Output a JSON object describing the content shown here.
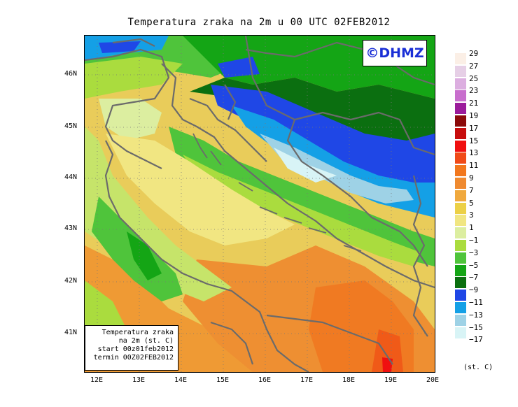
{
  "title": "Temperatura zraka na 2m u 00 UTC 02FEB2012",
  "logo": "©DHMZ",
  "info_box": {
    "line1": "Temperatura zraka",
    "line2": "na 2m (st. C)",
    "line3": "start 00z01feb2012",
    "line4": "termin 00Z02FEB2012"
  },
  "lat_labels": [
    "46N",
    "45N",
    "44N",
    "43N",
    "42N",
    "41N"
  ],
  "lon_labels": [
    "12E",
    "13E",
    "14E",
    "15E",
    "16E",
    "17E",
    "18E",
    "19E",
    "20E"
  ],
  "legend": {
    "unit": "(st. C)",
    "items": [
      {
        "label": "29",
        "color": "#fbefe6"
      },
      {
        "label": "27",
        "color": "#e6cfe6"
      },
      {
        "label": "25",
        "color": "#dcaee0"
      },
      {
        "label": "23",
        "color": "#c86ecd"
      },
      {
        "label": "21",
        "color": "#9b1b9b"
      },
      {
        "label": "19",
        "color": "#8b0a0a"
      },
      {
        "label": "17",
        "color": "#c70d0d"
      },
      {
        "label": "15",
        "color": "#f01010"
      },
      {
        "label": "13",
        "color": "#f04a18"
      },
      {
        "label": "11",
        "color": "#f2771d"
      },
      {
        "label": "9",
        "color": "#ef8a30"
      },
      {
        "label": "7",
        "color": "#f0a93e"
      },
      {
        "label": "5",
        "color": "#ecd046"
      },
      {
        "label": "3",
        "color": "#f1e682"
      },
      {
        "label": "1",
        "color": "#dceea0"
      },
      {
        "label": "−1",
        "color": "#aadc3e"
      },
      {
        "label": "−3",
        "color": "#4fc43b"
      },
      {
        "label": "−5",
        "color": "#14a515"
      },
      {
        "label": "−7",
        "color": "#0b6f10"
      },
      {
        "label": "−9",
        "color": "#1f47e6"
      },
      {
        "label": "−11",
        "color": "#14a0e6"
      },
      {
        "label": "−13",
        "color": "#9ed2e6"
      },
      {
        "label": "−15",
        "color": "#d8f4f6"
      },
      {
        "label": "−17",
        "color": "#ffffff"
      }
    ]
  }
}
